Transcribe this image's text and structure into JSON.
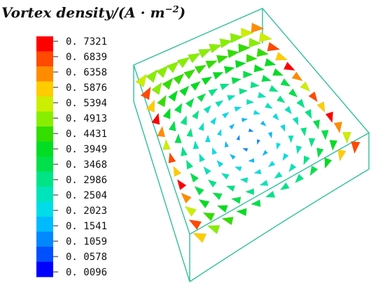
{
  "chart_data": {
    "type": "3d-vector-field",
    "title": "Vortex density/(A · m",
    "title_exponent": "−2",
    "colorbar": {
      "ticks": [
        "0. 7321",
        "0. 6839",
        "0. 6358",
        "0. 5876",
        "0. 5394",
        "0. 4913",
        "0. 4431",
        "0. 3949",
        "0. 3468",
        "0. 2986",
        "0. 2504",
        "0. 2023",
        "0. 1541",
        "0. 1059",
        "0. 0578",
        "0. 0096"
      ],
      "min": 0.0096,
      "max": 0.7321,
      "colors": [
        "#ff0000",
        "#ff4a00",
        "#ff8c00",
        "#ffcc00",
        "#ccee00",
        "#88ee00",
        "#33dd00",
        "#00dd22",
        "#00e04a",
        "#00e488",
        "#00e4bb",
        "#00dde8",
        "#00bbff",
        "#0088ff",
        "#0050ff",
        "#0000ff"
      ]
    }
  }
}
